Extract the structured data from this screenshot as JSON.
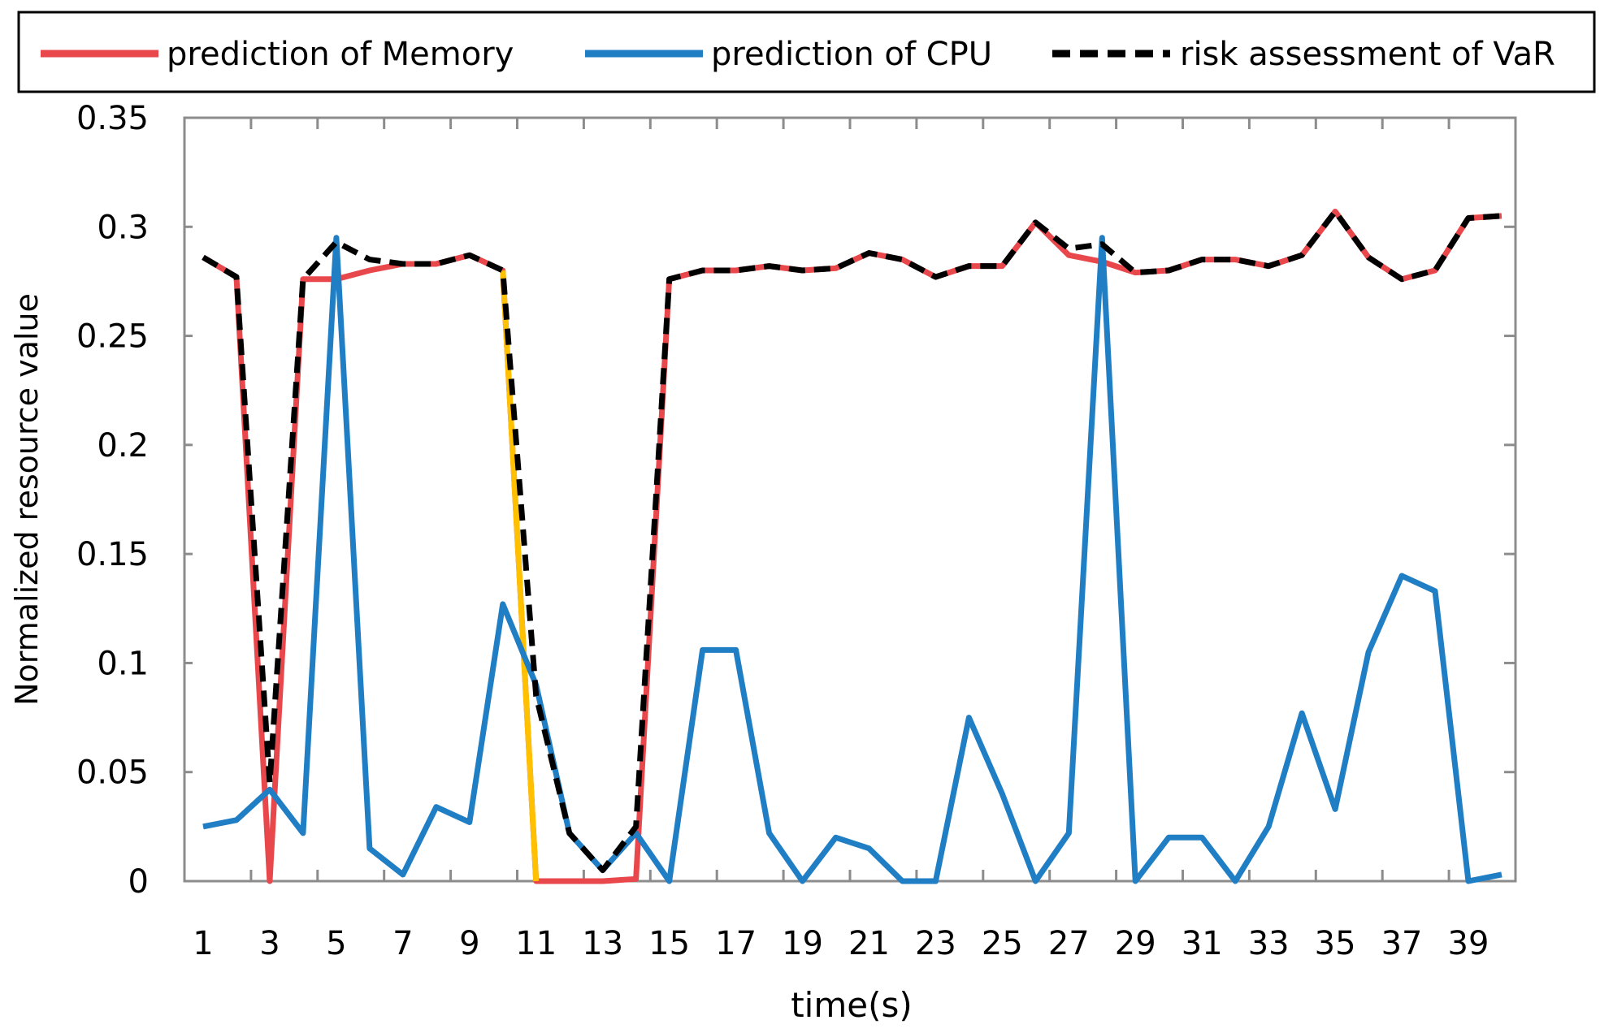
{
  "chart_data": {
    "type": "line",
    "title": "",
    "xlabel": "time(s)",
    "ylabel": "Normalized resource value",
    "x": [
      1,
      2,
      3,
      4,
      5,
      6,
      7,
      8,
      9,
      10,
      11,
      12,
      13,
      14,
      15,
      16,
      17,
      18,
      19,
      20,
      21,
      22,
      23,
      24,
      25,
      26,
      27,
      28,
      29,
      30,
      31,
      32,
      33,
      34,
      35,
      36,
      37,
      38,
      39,
      40
    ],
    "x_tick_labels": [
      "1",
      "3",
      "5",
      "7",
      "9",
      "11",
      "13",
      "15",
      "17",
      "19",
      "21",
      "23",
      "25",
      "27",
      "29",
      "31",
      "33",
      "35",
      "37",
      "39"
    ],
    "y_tick_labels": [
      "0",
      "0.05",
      "0.1",
      "0.15",
      "0.2",
      "0.25",
      "0.3",
      "0.35"
    ],
    "ylim": [
      0,
      0.35
    ],
    "grid": false,
    "legend_position": "top",
    "series": [
      {
        "name": "prediction of Memory",
        "color": "#E8474C",
        "style": "solid",
        "values": [
          0.286,
          0.277,
          0,
          0.276,
          0.276,
          0.28,
          0.283,
          0.283,
          0.287,
          0.28,
          0,
          0,
          0,
          0.001,
          0.276,
          0.28,
          0.28,
          0.282,
          0.28,
          0.281,
          0.288,
          0.285,
          0.277,
          0.282,
          0.282,
          0.302,
          0.287,
          0.284,
          0.279,
          0.28,
          0.285,
          0.285,
          0.282,
          0.287,
          0.307,
          0.286,
          0.276,
          0.28,
          0.304,
          0.305
        ],
        "highlight_segment": {
          "from": 10,
          "to": 11,
          "color": "#FFC000"
        }
      },
      {
        "name": "prediction of CPU",
        "color": "#1F7EC4",
        "style": "solid",
        "values": [
          0.025,
          0.028,
          0.042,
          0.022,
          0.295,
          0.015,
          0.003,
          0.034,
          0.027,
          0.127,
          0.09,
          0.022,
          0.005,
          0.022,
          0,
          0.106,
          0.106,
          0.022,
          0,
          0.02,
          0.015,
          0,
          0,
          0.075,
          0.04,
          0,
          0.022,
          0.295,
          0,
          0.02,
          0.02,
          0,
          0.025,
          0.077,
          0.033,
          0.105,
          0.14,
          0.133,
          0,
          0.003
        ]
      },
      {
        "name": "risk assessment of VaR",
        "color": "#000000",
        "style": "dashed",
        "values": [
          0.286,
          0.277,
          0.045,
          0.276,
          0.293,
          0.285,
          0.283,
          0.283,
          0.287,
          0.28,
          0.085,
          0.022,
          0.005,
          0.025,
          0.276,
          0.28,
          0.28,
          0.282,
          0.28,
          0.281,
          0.288,
          0.285,
          0.277,
          0.282,
          0.282,
          0.302,
          0.29,
          0.292,
          0.279,
          0.28,
          0.285,
          0.285,
          0.282,
          0.287,
          0.307,
          0.286,
          0.276,
          0.28,
          0.304,
          0.305
        ]
      }
    ]
  }
}
